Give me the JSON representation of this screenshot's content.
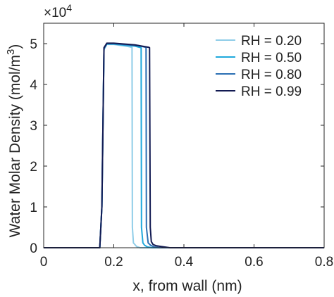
{
  "chart_data": {
    "type": "line",
    "title": "",
    "xlabel": "x, from wall (nm)",
    "ylabel": "Water Molar Density (mol/m",
    "ylabel_sup": "3",
    "ylabel_close": ")",
    "exponent_label": "×10",
    "exponent_sup": "4",
    "xlim": [
      0,
      0.8
    ],
    "ylim": [
      0,
      5.5
    ],
    "xticks": [
      0,
      0.2,
      0.4,
      0.6,
      0.8
    ],
    "xtick_labels": [
      "0",
      "0.2",
      "0.4",
      "0.6",
      "0.8"
    ],
    "yticks": [
      0,
      1,
      2,
      3,
      4,
      5
    ],
    "ytick_labels": [
      "0",
      "1",
      "2",
      "3",
      "4",
      "5"
    ],
    "grid": false,
    "legend_position": "top-right",
    "series": [
      {
        "name": "RH = 0.20",
        "color": "#8fcde8",
        "x": [
          0.0,
          0.16,
          0.166,
          0.172,
          0.18,
          0.2,
          0.24,
          0.252,
          0.253,
          0.256,
          0.26,
          0.265,
          0.275,
          0.3,
          0.8
        ],
        "y": [
          0.0,
          0.0,
          1.0,
          4.85,
          4.98,
          4.98,
          4.93,
          4.91,
          0.5,
          0.12,
          0.08,
          0.03,
          0.0,
          0.0,
          0.0
        ]
      },
      {
        "name": "RH = 0.50",
        "color": "#1fa9dc",
        "x": [
          0.0,
          0.16,
          0.166,
          0.172,
          0.18,
          0.2,
          0.26,
          0.278,
          0.279,
          0.283,
          0.288,
          0.296,
          0.31,
          0.8
        ],
        "y": [
          0.0,
          0.0,
          1.0,
          4.87,
          4.99,
          4.99,
          4.94,
          4.9,
          0.5,
          0.12,
          0.06,
          0.02,
          0.0,
          0.0
        ]
      },
      {
        "name": "RH = 0.80",
        "color": "#2a6fb3",
        "x": [
          0.0,
          0.16,
          0.166,
          0.172,
          0.18,
          0.2,
          0.27,
          0.292,
          0.293,
          0.298,
          0.305,
          0.315,
          0.33,
          0.8
        ],
        "y": [
          0.0,
          0.0,
          1.0,
          4.88,
          5.0,
          5.0,
          4.95,
          4.91,
          0.5,
          0.12,
          0.06,
          0.02,
          0.0,
          0.0
        ]
      },
      {
        "name": "RH = 0.99",
        "color": "#121a52",
        "x": [
          0.0,
          0.16,
          0.166,
          0.172,
          0.18,
          0.2,
          0.26,
          0.3,
          0.302,
          0.304,
          0.307,
          0.312,
          0.32,
          0.335,
          0.36,
          0.8
        ],
        "y": [
          0.0,
          0.0,
          1.0,
          4.9,
          5.01,
          5.01,
          4.97,
          4.91,
          4.9,
          0.5,
          0.15,
          0.08,
          0.05,
          0.03,
          0.0,
          0.0
        ]
      }
    ]
  }
}
